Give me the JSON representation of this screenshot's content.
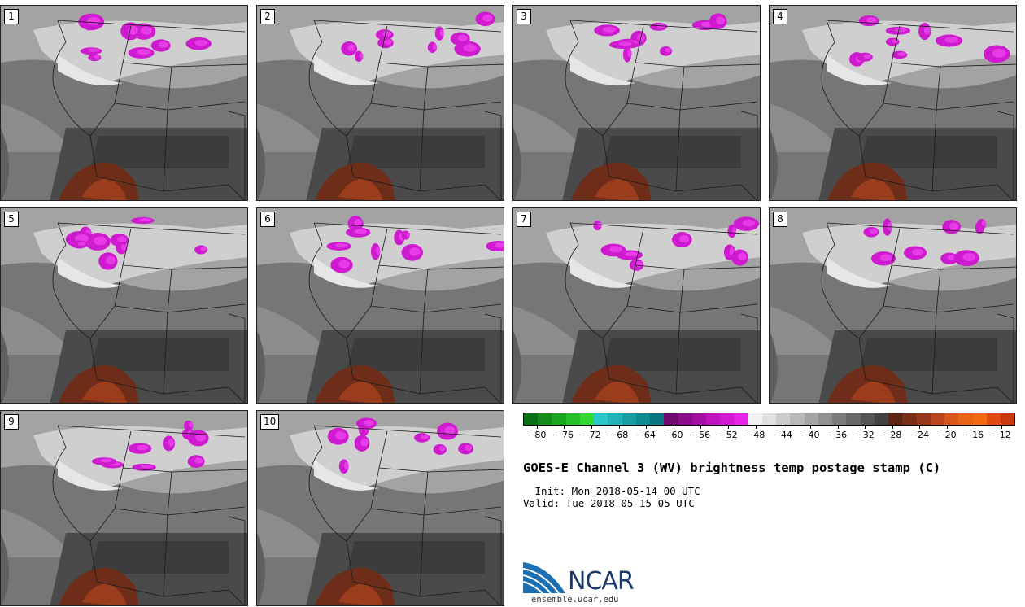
{
  "figure": {
    "title": "GOES-E Channel 3 (WV) brightness temp postage stamp (C)",
    "init": " Init: Mon 2018-05-14 00 UTC",
    "valid": "Valid: Tue 2018-05-15 05 UTC",
    "logo_text": "NCAR",
    "site": "ensemble.ucar.edu"
  },
  "panels": [
    "1",
    "2",
    "3",
    "4",
    "5",
    "6",
    "7",
    "8",
    "9",
    "10"
  ],
  "colorbar": {
    "unit": "C",
    "tick_labels": [
      "−80",
      "−76",
      "−72",
      "−68",
      "−64",
      "−60",
      "−56",
      "−52",
      "−48",
      "−44",
      "−40",
      "−36",
      "−32",
      "−28",
      "−24",
      "−20",
      "−16",
      "−12"
    ],
    "min": -82,
    "max": -10,
    "step": 2,
    "colors": [
      "#0a6f14",
      "#138c1a",
      "#1aa520",
      "#25bf27",
      "#33d833",
      "#29c7c7",
      "#1fb2b6",
      "#169ea4",
      "#0d8a92",
      "#077680",
      "#6e0a6e",
      "#8a0c8a",
      "#a30fa3",
      "#bd14bd",
      "#d41bd4",
      "#e824e8",
      "#f2f2f2",
      "#e0e0e0",
      "#cccccc",
      "#b8b8b8",
      "#a4a4a4",
      "#909090",
      "#7c7c7c",
      "#686868",
      "#555555",
      "#434343",
      "#5c2414",
      "#7a2e17",
      "#98381a",
      "#b9451c",
      "#d9561c",
      "#e86318",
      "#f06a14",
      "#e04a12",
      "#c8380f"
    ]
  }
}
